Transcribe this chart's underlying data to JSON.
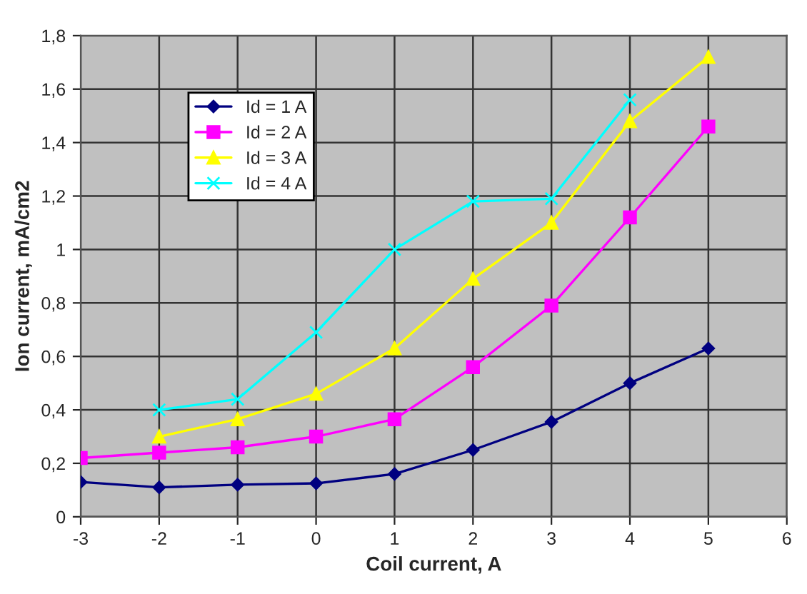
{
  "chart_data": {
    "type": "line",
    "xlabel": "Coil current, A",
    "ylabel": "Ion current, mA/cm2",
    "x": [
      -3,
      -2,
      -1,
      0,
      1,
      2,
      3,
      4,
      5
    ],
    "series": [
      {
        "name": "Id = 1 A",
        "color": "#000080",
        "marker": "diamond",
        "values": [
          0.13,
          0.11,
          0.12,
          0.125,
          0.16,
          0.25,
          0.355,
          0.5,
          0.63
        ]
      },
      {
        "name": "Id = 2 A",
        "color": "#ff00ff",
        "marker": "square",
        "values": [
          0.22,
          0.24,
          0.26,
          0.3,
          0.365,
          0.56,
          0.79,
          1.12,
          1.46
        ]
      },
      {
        "name": "Id = 3 A",
        "color": "#ffff00",
        "marker": "triangle",
        "values": [
          null,
          0.3,
          0.365,
          0.46,
          0.63,
          0.89,
          1.1,
          1.48,
          1.72
        ]
      },
      {
        "name": "Id = 4 A",
        "color": "#00ffff",
        "marker": "cross",
        "values": [
          null,
          0.4,
          0.44,
          0.69,
          1.0,
          1.18,
          1.19,
          1.56,
          null
        ]
      }
    ],
    "xlim": [
      -3,
      6
    ],
    "xticks": [
      -3,
      -2,
      -1,
      0,
      1,
      2,
      3,
      4,
      5,
      6
    ],
    "ylim": [
      0,
      1.8
    ],
    "yticks": [
      0,
      {
        "value": 0.2,
        "label": "0,2"
      },
      {
        "value": 0.4,
        "label": "0,4"
      },
      {
        "value": 0.6,
        "label": "0,6"
      },
      {
        "value": 0.8,
        "label": "0,8"
      },
      1,
      {
        "value": 1.2,
        "label": "1,2"
      },
      {
        "value": 1.4,
        "label": "1,4"
      },
      {
        "value": 1.6,
        "label": "1,6"
      },
      {
        "value": 1.8,
        "label": "1,8"
      }
    ],
    "grid": true,
    "legend": "top left"
  }
}
